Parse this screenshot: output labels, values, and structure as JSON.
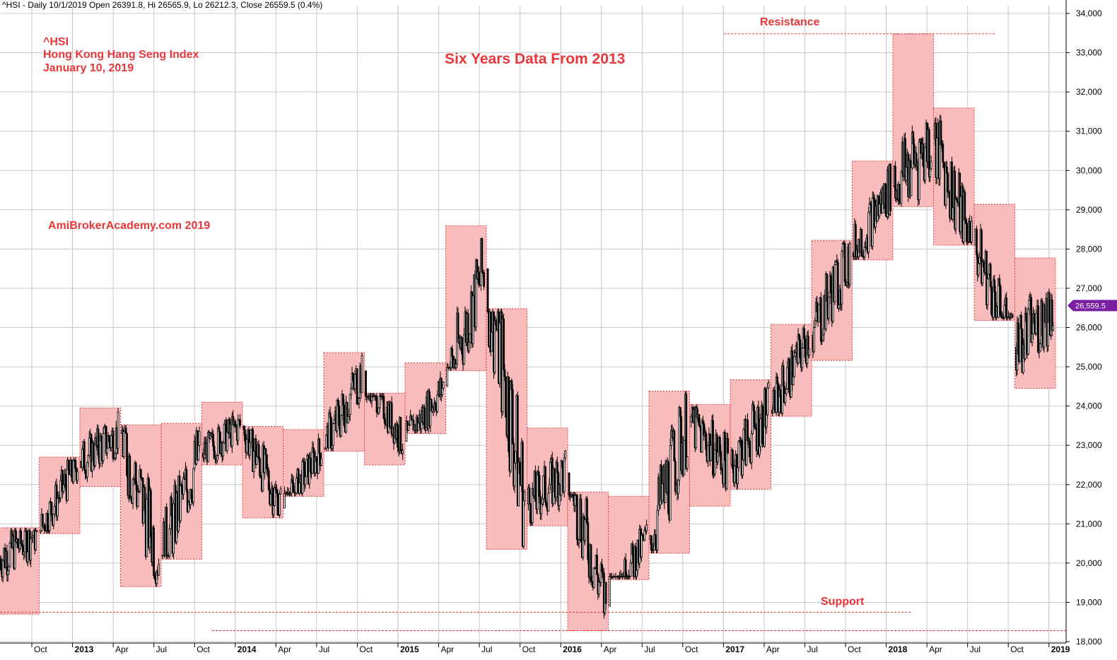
{
  "header": {
    "text": "^HSI - Daily 10/1/2019 Open 26391.8, Hi 26565.9, Lo 26212.3, Close 26559.5 (0.4%)"
  },
  "annotations": {
    "symbol": "^HSI",
    "index_name": "Hong Kong Hang Seng Index",
    "date": "January 10, 2019",
    "title": "Six Years Data From 2013",
    "watermark": "AmiBrokerAcademy.com  2019",
    "resistance_label": "Resistance",
    "support_label": "Support"
  },
  "colors": {
    "box_fill": "#f9bcbc",
    "box_border": "#e8373a",
    "text_red": "#e8373a",
    "candles": "#000000",
    "grid": "#c8c8c8",
    "price_tag": "#7b1fa2"
  },
  "last_price_label": "26,559.5",
  "chart_data": {
    "type": "candlestick",
    "ylim": [
      18000,
      34500
    ],
    "y_ticks": [
      18000,
      19000,
      20000,
      21000,
      22000,
      23000,
      24000,
      25000,
      26000,
      27000,
      28000,
      29000,
      30000,
      31000,
      32000,
      33000,
      34000
    ],
    "y_tick_labels": [
      "18,000",
      "19,000",
      "20,000",
      "21,000",
      "22,000",
      "23,000",
      "24,000",
      "25,000",
      "26,000",
      "27,000",
      "28,000",
      "29,000",
      "30,000",
      "31,000",
      "32,000",
      "33,000",
      "34,000"
    ],
    "x_ticks": [
      {
        "label": "Oct",
        "year": false
      },
      {
        "label": "2013",
        "year": true
      },
      {
        "label": "Apr",
        "year": false
      },
      {
        "label": "Jul",
        "year": false
      },
      {
        "label": "Oct",
        "year": false
      },
      {
        "label": "2014",
        "year": true
      },
      {
        "label": "Apr",
        "year": false
      },
      {
        "label": "Jul",
        "year": false
      },
      {
        "label": "Oct",
        "year": false
      },
      {
        "label": "2015",
        "year": true
      },
      {
        "label": "Apr",
        "year": false
      },
      {
        "label": "Jul",
        "year": false
      },
      {
        "label": "Oct",
        "year": false
      },
      {
        "label": "2016",
        "year": true
      },
      {
        "label": "Apr",
        "year": false
      },
      {
        "label": "Jul",
        "year": false
      },
      {
        "label": "Oct",
        "year": false
      },
      {
        "label": "2017",
        "year": true
      },
      {
        "label": "Apr",
        "year": false
      },
      {
        "label": "Jul",
        "year": false
      },
      {
        "label": "Oct",
        "year": false
      },
      {
        "label": "2018",
        "year": true
      },
      {
        "label": "Apr",
        "year": false
      },
      {
        "label": "Jul",
        "year": false
      },
      {
        "label": "Oct",
        "year": false
      },
      {
        "label": "2019",
        "year": true
      }
    ],
    "monthly_ranges": [
      {
        "month": "2012-09",
        "low": 18700,
        "high": 20900
      },
      {
        "month": "2012-10",
        "low": 20750,
        "high": 22700
      },
      {
        "month": "2012-12",
        "low": 21950,
        "high": 23950
      },
      {
        "month": "2013-02",
        "low": 19400,
        "high": 23520
      },
      {
        "month": "2013-04",
        "low": 20100,
        "high": 23560
      },
      {
        "month": "2013-06",
        "low": 22500,
        "high": 24100
      },
      {
        "month": "2013-08",
        "low": 21150,
        "high": 23480
      },
      {
        "month": "2013-10",
        "low": 21700,
        "high": 23400
      },
      {
        "month": "2013-12",
        "low": 22850,
        "high": 25360
      },
      {
        "month": "2014-02",
        "low": 22500,
        "high": 24330
      },
      {
        "month": "2014-04",
        "low": 23300,
        "high": 25100
      },
      {
        "month": "2014-06",
        "low": 24900,
        "high": 28590
      },
      {
        "month": "2014-08",
        "low": 20350,
        "high": 26480
      },
      {
        "month": "2014-10",
        "low": 20950,
        "high": 23440
      },
      {
        "month": "2015-01",
        "low": 18280,
        "high": 21810
      },
      {
        "month": "2015-03",
        "low": 19580,
        "high": 21700
      },
      {
        "month": "2015-05",
        "low": 20250,
        "high": 24380
      },
      {
        "month": "2015-07",
        "low": 21450,
        "high": 24040
      },
      {
        "month": "2015-09",
        "low": 21880,
        "high": 24670
      },
      {
        "month": "2015-11",
        "low": 23740,
        "high": 26080
      },
      {
        "month": "2016-01",
        "low": 25160,
        "high": 28220
      },
      {
        "month": "2016-03",
        "low": 27720,
        "high": 30240
      },
      {
        "month": "2016-05",
        "low": 29080,
        "high": 33480
      },
      {
        "month": "2016-07",
        "low": 28100,
        "high": 31590
      },
      {
        "month": "2016-09",
        "low": 26180,
        "high": 29140
      },
      {
        "month": "2016-11",
        "low": 24450,
        "high": 27770
      }
    ],
    "resistance": 33480,
    "support_levels": [
      18750,
      18280
    ],
    "last_close": 26559.5
  }
}
